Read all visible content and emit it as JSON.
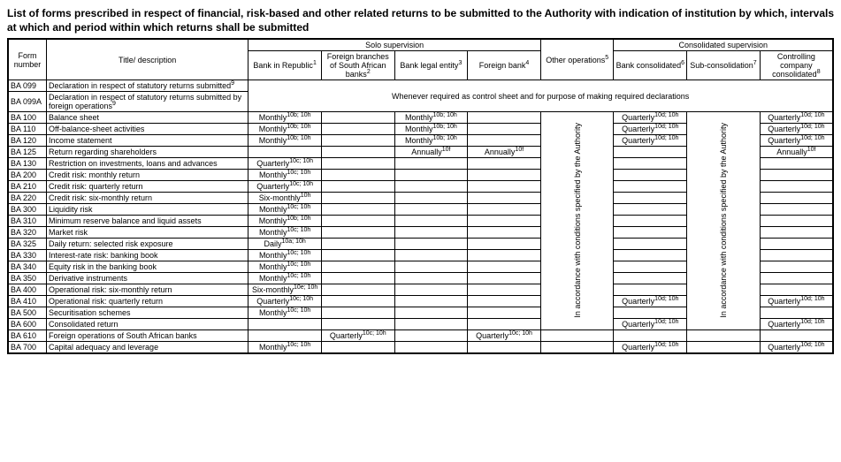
{
  "title": "List of forms prescribed in respect of financial, risk-based and other related returns to be submitted to the Authority with indication of institution by which, intervals at which and period within which returns shall be submitted",
  "headers": {
    "form_number": "Form number",
    "title_desc": "Title/ description",
    "solo": "Solo supervision",
    "consolidated": "Consolidated supervision",
    "bank_republic": "Bank in Republic",
    "foreign_branches": "Foreign branches of South African banks",
    "bank_legal": "Bank legal entity",
    "foreign_bank": "Foreign bank",
    "other_ops": "Other operations",
    "bank_cons": "Bank consolidated",
    "sub_cons": "Sub-consolidation",
    "controlling": "Controlling company consolidated"
  },
  "sup": {
    "bank_republic": "1",
    "foreign_branches": "2",
    "bank_legal": "3",
    "foreign_bank": "4",
    "other_ops": "5",
    "bank_cons": "6",
    "sub_cons": "7",
    "controlling": "8",
    "ba099": "9",
    "ba099a": "9",
    "monthly_bh": "10b; 10h",
    "monthly_ch": "10c; 10h",
    "monthly_eh": "10e; 10h",
    "quarterly_ch": "10c; 10h",
    "quarterly_dh": "10d; 10h",
    "sixmonthly_h": "10h",
    "sixmonthly_eh": "10e; 10h",
    "daily_ah": "10a; 10h",
    "annually_f": "10f"
  },
  "span_text": "Whenever required as control sheet and for purpose of making required declarations",
  "vertical_text": "In accordance with conditions specified by the Authority",
  "rows": {
    "r1": {
      "code": "BA 099",
      "title": "Declaration in respect of statutory returns submitted"
    },
    "r2": {
      "code": "BA 099A",
      "title": "Declaration in respect of statutory returns submitted by foreign operations"
    },
    "r3": {
      "code": "BA 100",
      "title": "Balance sheet"
    },
    "r4": {
      "code": "BA 110",
      "title": "Off-balance-sheet activities"
    },
    "r5": {
      "code": "BA 120",
      "title": "Income statement"
    },
    "r6": {
      "code": "BA 125",
      "title": "Return regarding shareholders"
    },
    "r7": {
      "code": "BA 130",
      "title": "Restriction on investments, loans and advances"
    },
    "r8": {
      "code": "BA 200",
      "title": "Credit risk: monthly return"
    },
    "r9": {
      "code": "BA 210",
      "title": "Credit risk: quarterly return"
    },
    "r10": {
      "code": "BA 220",
      "title": "Credit risk: six-monthly return"
    },
    "r11": {
      "code": "BA 300",
      "title": "Liquidity risk"
    },
    "r12": {
      "code": "BA 310",
      "title": "Minimum reserve balance and liquid assets"
    },
    "r13": {
      "code": "BA 320",
      "title": "Market risk"
    },
    "r14": {
      "code": "BA 325",
      "title": "Daily return: selected risk exposure"
    },
    "r15": {
      "code": "BA 330",
      "title": "Interest-rate risk: banking book"
    },
    "r16": {
      "code": "BA 340",
      "title": "Equity risk in the banking book"
    },
    "r17": {
      "code": "BA 350",
      "title": "Derivative instruments"
    },
    "r18": {
      "code": "BA 400",
      "title": "Operational risk: six-monthly return"
    },
    "r19": {
      "code": "BA 410",
      "title": "Operational risk: quarterly return"
    },
    "r20": {
      "code": "BA 500",
      "title": "Securitisation schemes"
    },
    "r21": {
      "code": "BA 600",
      "title": "Consolidated return"
    },
    "r22": {
      "code": "BA 610",
      "title": "Foreign operations of South African banks"
    },
    "r23": {
      "code": "BA 700",
      "title": "Capital adequacy and leverage"
    }
  },
  "freq": {
    "monthly": "Monthly",
    "quarterly": "Quarterly",
    "sixmonthly": "Six-monthly",
    "daily": "Daily",
    "annually": "Annually"
  }
}
